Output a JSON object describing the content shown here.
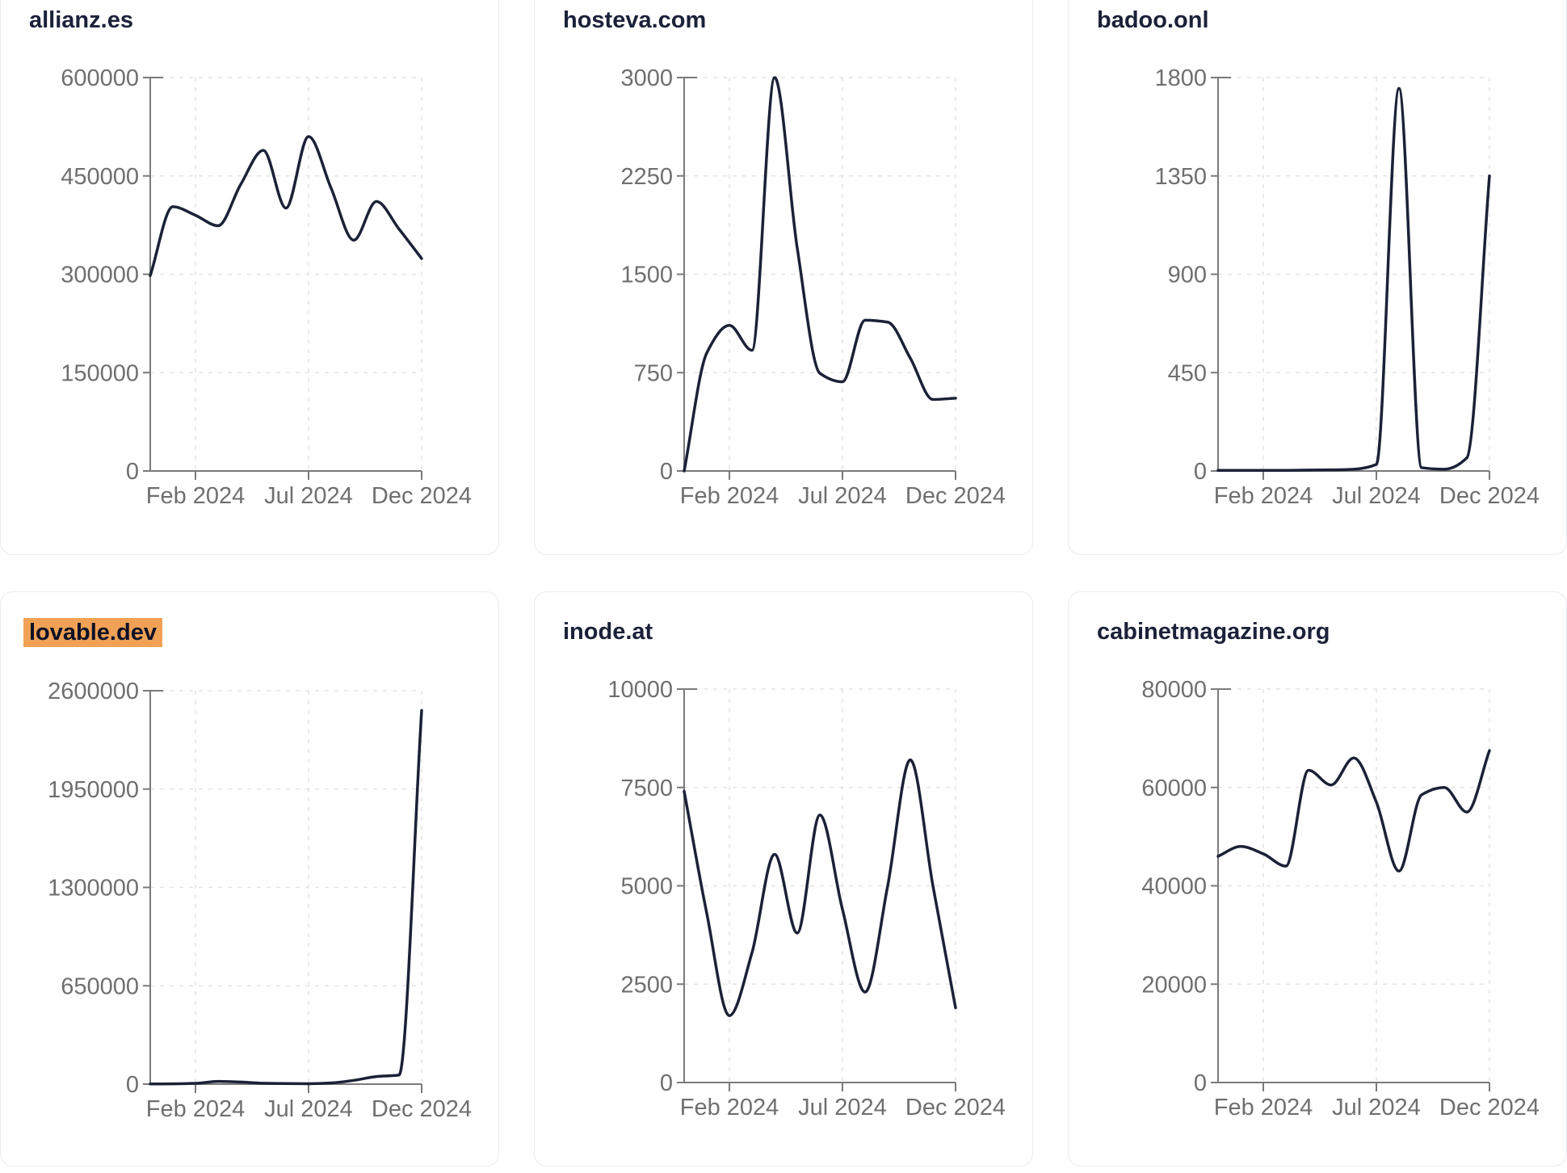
{
  "page": {
    "background": "#ffffff",
    "layout": "3x2 grid of domain traffic line charts"
  },
  "theme": {
    "line_color": "#1b2136",
    "title_color": "#1b2138",
    "tick_label_color": "#6f6f6f",
    "axis_color": "#7a7a7a",
    "grid_color": "#e4e4e6",
    "card_border_color": "#e8ebf1",
    "highlight_color": "#f0a155"
  },
  "chart_data": [
    {
      "type": "line",
      "title": "allianz.es",
      "title_highlighted": false,
      "x": [
        "Dec 2023",
        "Jan 2024",
        "Feb 2024",
        "Mar 2024",
        "Apr 2024",
        "May 2024",
        "Jun 2024",
        "Jul 2024",
        "Aug 2024",
        "Sep 2024",
        "Oct 2024",
        "Nov 2024",
        "Dec 2024"
      ],
      "values": [
        298000,
        403000,
        390000,
        374000,
        437000,
        489000,
        401000,
        510000,
        431000,
        352000,
        411000,
        369000,
        324000
      ],
      "ylim": [
        0,
        600000
      ],
      "yticks": [
        0,
        150000,
        300000,
        450000,
        600000
      ],
      "xticks": [
        {
          "label": "Feb 2024",
          "pos": 0.1667
        },
        {
          "label": "Jul 2024",
          "pos": 0.5833
        },
        {
          "label": "Dec 2024",
          "pos": 1
        }
      ],
      "grid": "dashed",
      "legend": "none"
    },
    {
      "type": "line",
      "title": "hosteva.com",
      "title_highlighted": false,
      "x": [
        "Dec 2023",
        "Jan 2024",
        "Feb 2024",
        "Mar 2024",
        "Apr 2024",
        "May 2024",
        "Jun 2024",
        "Jul 2024",
        "Aug 2024",
        "Sep 2024",
        "Oct 2024",
        "Nov 2024",
        "Dec 2024"
      ],
      "values": [
        0,
        900,
        1110,
        920,
        3000,
        1700,
        745,
        680,
        1150,
        1135,
        860,
        545,
        555
      ],
      "ylim": [
        0,
        3000
      ],
      "yticks": [
        0,
        750,
        1500,
        2250,
        3000
      ],
      "xticks": [
        {
          "label": "Feb 2024",
          "pos": 0.1667
        },
        {
          "label": "Jul 2024",
          "pos": 0.5833
        },
        {
          "label": "Dec 2024",
          "pos": 1
        }
      ],
      "grid": "dashed",
      "legend": "none"
    },
    {
      "type": "line",
      "title": "badoo.onl",
      "title_highlighted": false,
      "x": [
        "Dec 2023",
        "Jan 2024",
        "Feb 2024",
        "Mar 2024",
        "Apr 2024",
        "May 2024",
        "Jun 2024",
        "Jul 2024",
        "Aug 2024",
        "Sep 2024",
        "Oct 2024",
        "Nov 2024",
        "Dec 2024"
      ],
      "values": [
        3,
        3,
        3,
        3,
        4,
        5,
        8,
        30,
        1750,
        15,
        8,
        60,
        1350
      ],
      "ylim": [
        0,
        1800
      ],
      "yticks": [
        0,
        450,
        900,
        1350,
        1800
      ],
      "xticks": [
        {
          "label": "Feb 2024",
          "pos": 0.1667
        },
        {
          "label": "Jul 2024",
          "pos": 0.5833
        },
        {
          "label": "Dec 2024",
          "pos": 1
        }
      ],
      "grid": "dashed",
      "legend": "none"
    },
    {
      "type": "line",
      "title": "lovable.dev",
      "title_highlighted": true,
      "x": [
        "Dec 2023",
        "Jan 2024",
        "Feb 2024",
        "Mar 2024",
        "Apr 2024",
        "May 2024",
        "Jun 2024",
        "Jul 2024",
        "Aug 2024",
        "Sep 2024",
        "Oct 2024",
        "Nov 2024",
        "Dec 2024"
      ],
      "values": [
        1000,
        2000,
        5000,
        18000,
        14000,
        6000,
        4000,
        3000,
        8000,
        25000,
        50000,
        60000,
        2470000
      ],
      "ylim": [
        0,
        2600000
      ],
      "yticks": [
        0,
        650000,
        1300000,
        1950000,
        2600000
      ],
      "xticks": [
        {
          "label": "Feb 2024",
          "pos": 0.1667
        },
        {
          "label": "Jul 2024",
          "pos": 0.5833
        },
        {
          "label": "Dec 2024",
          "pos": 1
        }
      ],
      "grid": "dashed",
      "legend": "none"
    },
    {
      "type": "line",
      "title": "inode.at",
      "title_highlighted": false,
      "x": [
        "Dec 2023",
        "Jan 2024",
        "Feb 2024",
        "Mar 2024",
        "Apr 2024",
        "May 2024",
        "Jun 2024",
        "Jul 2024",
        "Aug 2024",
        "Sep 2024",
        "Oct 2024",
        "Nov 2024",
        "Dec 2024"
      ],
      "values": [
        7400,
        4300,
        1700,
        3300,
        5800,
        3800,
        6800,
        4400,
        2300,
        5000,
        8200,
        5000,
        1900
      ],
      "ylim": [
        0,
        10000
      ],
      "yticks": [
        0,
        2500,
        5000,
        7500,
        10000
      ],
      "xticks": [
        {
          "label": "Feb 2024",
          "pos": 0.1667
        },
        {
          "label": "Jul 2024",
          "pos": 0.5833
        },
        {
          "label": "Dec 2024",
          "pos": 1
        }
      ],
      "grid": "dashed",
      "legend": "none"
    },
    {
      "type": "line",
      "title": "cabinetmagazine.org",
      "title_highlighted": false,
      "x": [
        "Dec 2023",
        "Jan 2024",
        "Feb 2024",
        "Mar 2024",
        "Apr 2024",
        "May 2024",
        "Jun 2024",
        "Jul 2024",
        "Aug 2024",
        "Sep 2024",
        "Oct 2024",
        "Nov 2024",
        "Dec 2024"
      ],
      "values": [
        46000,
        48000,
        46500,
        44000,
        63500,
        60500,
        66000,
        57000,
        43000,
        58500,
        60000,
        55000,
        67500
      ],
      "ylim": [
        0,
        80000
      ],
      "yticks": [
        0,
        20000,
        40000,
        60000,
        80000
      ],
      "xticks": [
        {
          "label": "Feb 2024",
          "pos": 0.1667
        },
        {
          "label": "Jul 2024",
          "pos": 0.5833
        },
        {
          "label": "Dec 2024",
          "pos": 1
        }
      ],
      "grid": "dashed",
      "legend": "none"
    }
  ]
}
